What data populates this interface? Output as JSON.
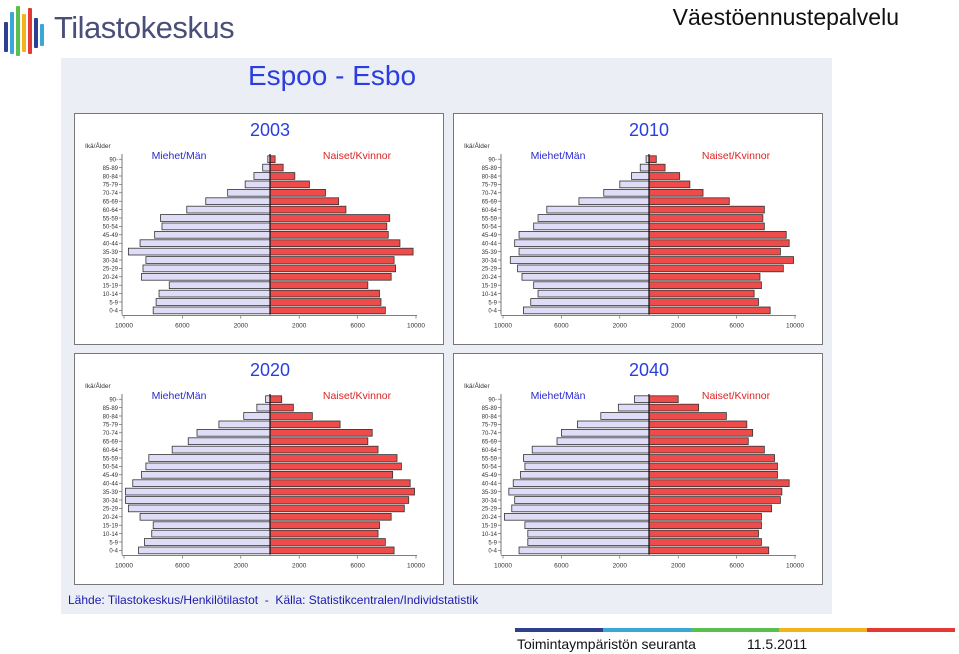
{
  "header": {
    "logo_text": "Tilastokeskus",
    "service_title": "Väestöennustepalvelu"
  },
  "slide": {
    "title": "Espoo  -  Esbo",
    "source": "Lähde: Tilastokeskus/Henkilötilastot  -  Källa: Statistikcentralen/Individstatistik"
  },
  "footer": {
    "label": "Toimintaympäristön seuranta",
    "date": "11.5.2011",
    "bar_colors": [
      "#2e3f8f",
      "#3aa7d9",
      "#5bbf4e",
      "#f3b31b",
      "#e53935"
    ]
  },
  "colors": {
    "male_bar": "#dedcf7",
    "female_bar": "#ee4b4b",
    "title_text": "#2a3ee0",
    "series_label_text": "#2a2acc",
    "female_label_text": "#dd2222"
  },
  "chart_data": [
    {
      "type": "bar",
      "title": "2003",
      "ylabel": "Ikä/Ålder",
      "categories": [
        "90-",
        "85-89",
        "80-84",
        "75-79",
        "70-74",
        "65-69",
        "60-64",
        "55-59",
        "50-54",
        "45-49",
        "40-44",
        "35-39",
        "30-34",
        "25-29",
        "20-24",
        "15-19",
        "10-14",
        "5-9",
        "0-4"
      ],
      "series": [
        {
          "name": "Miehet/Män",
          "values": [
            150,
            500,
            1100,
            1700,
            2900,
            4400,
            5700,
            7500,
            7400,
            7900,
            8900,
            9700,
            8500,
            8700,
            8800,
            6900,
            7600,
            7800,
            8000
          ]
        },
        {
          "name": "Naiset/Kvinnor",
          "values": [
            350,
            900,
            1700,
            2700,
            3800,
            4700,
            5200,
            8200,
            8000,
            8100,
            8900,
            9800,
            8500,
            8600,
            8300,
            6700,
            7500,
            7600,
            7900
          ]
        }
      ],
      "xticks": [
        "10000",
        "6000",
        "2000",
        "2000",
        "6000",
        "10000"
      ],
      "xlim": [
        -10000,
        10000
      ]
    },
    {
      "type": "bar",
      "title": "2010",
      "ylabel": "Ikä/Ålder",
      "categories": [
        "90-",
        "85-89",
        "80-84",
        "75-79",
        "70-74",
        "65-69",
        "60-64",
        "55-59",
        "50-54",
        "45-49",
        "40-44",
        "35-39",
        "30-34",
        "25-29",
        "20-24",
        "15-19",
        "10-14",
        "5-9",
        "0-4"
      ],
      "series": [
        {
          "name": "Miehet/Män",
          "values": [
            200,
            600,
            1200,
            2000,
            3100,
            4800,
            7000,
            7600,
            7900,
            8900,
            9200,
            8900,
            9500,
            9000,
            8700,
            7900,
            7600,
            8100,
            8600
          ]
        },
        {
          "name": "Naiset/Kvinnor",
          "values": [
            500,
            1100,
            2100,
            2800,
            3700,
            5500,
            7900,
            7800,
            7900,
            9400,
            9600,
            9000,
            9900,
            9200,
            7600,
            7700,
            7200,
            7500,
            8300
          ]
        }
      ],
      "xticks": [
        "10000",
        "6000",
        "2000",
        "2000",
        "6000",
        "10000"
      ],
      "xlim": [
        -10000,
        10000
      ]
    },
    {
      "type": "bar",
      "title": "2020",
      "ylabel": "Ikä/Ålder",
      "categories": [
        "90-",
        "85-89",
        "80-84",
        "75-79",
        "70-74",
        "65-69",
        "60-64",
        "55-59",
        "50-54",
        "45-49",
        "40-44",
        "35-39",
        "30-34",
        "25-29",
        "20-24",
        "15-19",
        "10-14",
        "5-9",
        "0-4"
      ],
      "series": [
        {
          "name": "Miehet/Män",
          "values": [
            300,
            900,
            1800,
            3500,
            5000,
            5600,
            6700,
            8300,
            8500,
            8800,
            9400,
            9900,
            9900,
            9700,
            8900,
            8000,
            8100,
            8600,
            9000
          ]
        },
        {
          "name": "Naiset/Kvinnor",
          "values": [
            800,
            1600,
            2900,
            4800,
            7000,
            6700,
            7400,
            8700,
            9000,
            8400,
            9600,
            9900,
            9500,
            9200,
            8300,
            7500,
            7400,
            7900,
            8500
          ]
        }
      ],
      "xticks": [
        "10000",
        "6000",
        "2000",
        "2000",
        "6000",
        "10000"
      ],
      "xlim": [
        -10000,
        10000
      ]
    },
    {
      "type": "bar",
      "title": "2040",
      "ylabel": "Ikä/Ålder",
      "categories": [
        "90-",
        "85-89",
        "80-84",
        "75-79",
        "70-74",
        "65-69",
        "60-64",
        "55-59",
        "50-54",
        "45-49",
        "40-44",
        "35-39",
        "30-34",
        "25-29",
        "20-24",
        "15-19",
        "10-14",
        "5-9",
        "0-4"
      ],
      "series": [
        {
          "name": "Miehet/Män",
          "values": [
            1000,
            2100,
            3300,
            4900,
            6000,
            6300,
            8000,
            8600,
            8500,
            8800,
            9300,
            9600,
            9200,
            9400,
            9900,
            8500,
            8300,
            8300,
            8900
          ]
        },
        {
          "name": "Naiset/Kvinnor",
          "values": [
            2000,
            3400,
            5300,
            6700,
            7100,
            6800,
            7900,
            8600,
            8800,
            8800,
            9600,
            9100,
            9000,
            8400,
            7700,
            7700,
            7500,
            7700,
            8200
          ]
        }
      ],
      "xticks": [
        "10000",
        "6000",
        "2000",
        "2000",
        "6000",
        "10000"
      ],
      "xlim": [
        -10000,
        10000
      ]
    }
  ]
}
